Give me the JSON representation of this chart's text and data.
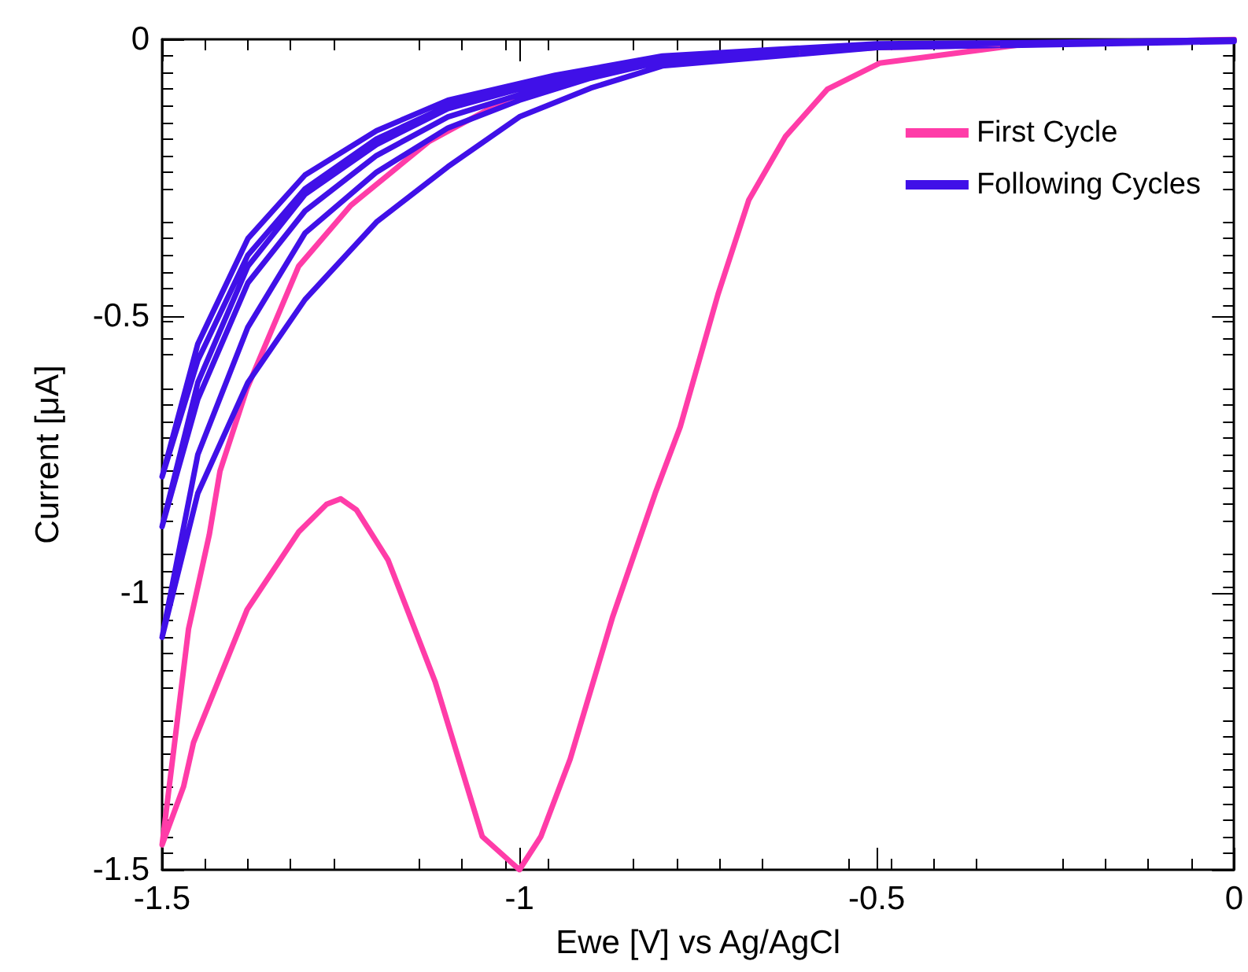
{
  "chart_data": {
    "type": "line",
    "xlabel": "Ewe [V] vs Ag/AgCl",
    "ylabel": "Current [μA]",
    "xlim": [
      -1.5,
      0
    ],
    "xticks": [
      -1.5,
      -1,
      -0.5,
      0
    ],
    "ylim": [
      -1.5,
      0
    ],
    "yticks": [
      -1.5,
      -1,
      -0.5,
      0
    ],
    "grid": false,
    "legend": "top right",
    "marker": "none",
    "line_style": "solid",
    "series": [
      {
        "name": "First Cycle",
        "color": "#ff3ca8",
        "x": [
          0,
          -0.3,
          -0.496,
          -0.569,
          -0.628,
          -0.679,
          -0.722,
          -0.775,
          -0.81,
          -0.87,
          -0.929,
          -0.97,
          -1.0,
          -1.052,
          -1.118,
          -1.184,
          -1.228,
          -1.25,
          -1.27,
          -1.309,
          -1.381,
          -1.456,
          -1.47,
          -1.5,
          -1.463,
          -1.434,
          -1.419,
          -1.381,
          -1.309,
          -1.236,
          -1.127,
          -1.017,
          -0.907,
          -0.797,
          -0.5,
          0
        ],
        "values": [
          0,
          -0.01,
          -0.043,
          -0.09,
          -0.176,
          -0.29,
          -0.46,
          -0.7,
          -0.82,
          -1.045,
          -1.3,
          -1.44,
          -1.5,
          -1.44,
          -1.16,
          -0.94,
          -0.85,
          -0.83,
          -0.84,
          -0.89,
          -1.03,
          -1.27,
          -1.35,
          -1.455,
          -1.065,
          -0.895,
          -0.78,
          -0.63,
          -0.41,
          -0.3,
          -0.185,
          -0.108,
          -0.062,
          -0.037,
          -0.015,
          -0.002
        ]
      },
      {
        "name": "Following Cycles",
        "color": "#4010e8",
        "x": [
          0,
          -0.5,
          -0.8,
          -0.95,
          -1.1,
          -1.2,
          -1.3,
          -1.38,
          -1.45,
          -1.5,
          -1.45,
          -1.38,
          -1.3,
          -1.2,
          -1.1,
          -0.95,
          -0.8,
          -0.5,
          0,
          -0.5,
          -0.8,
          -0.95,
          -1.1,
          -1.2,
          -1.3,
          -1.38,
          -1.45,
          -1.5,
          -1.45,
          -1.38,
          -1.3,
          -1.2,
          -1.1,
          -0.95,
          -0.8,
          -0.5,
          0,
          -0.5,
          -0.8,
          -0.9,
          -1.0,
          -1.1,
          -1.2,
          -1.3,
          -1.38,
          -1.45,
          -1.5,
          -1.45,
          -1.38,
          -1.3,
          -1.2,
          -1.1,
          -1.0,
          -0.9,
          -0.8,
          -0.5,
          0
        ],
        "values": [
          -0.002,
          -0.01,
          -0.035,
          -0.07,
          -0.12,
          -0.18,
          -0.27,
          -0.39,
          -0.58,
          -0.79,
          -0.55,
          -0.36,
          -0.245,
          -0.165,
          -0.11,
          -0.065,
          -0.03,
          -0.008,
          -0.003,
          -0.012,
          -0.04,
          -0.08,
          -0.14,
          -0.21,
          -0.31,
          -0.44,
          -0.65,
          -0.88,
          -0.62,
          -0.41,
          -0.28,
          -0.19,
          -0.125,
          -0.072,
          -0.035,
          -0.01,
          -0.004,
          -0.015,
          -0.048,
          -0.088,
          -0.14,
          -0.23,
          -0.33,
          -0.47,
          -0.62,
          -0.82,
          -1.08,
          -0.75,
          -0.52,
          -0.35,
          -0.24,
          -0.16,
          -0.11,
          -0.07,
          -0.04,
          -0.01,
          -0.001
        ]
      }
    ]
  }
}
